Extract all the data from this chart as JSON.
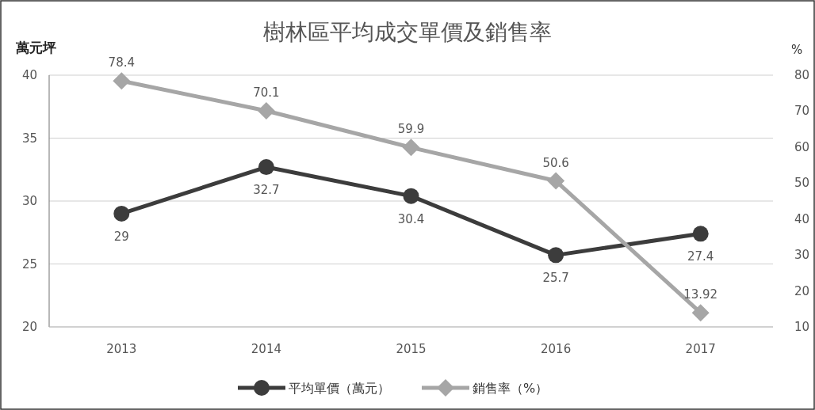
{
  "chart_data": {
    "type": "line",
    "title": "樹林區平均成交單價及銷售率",
    "ylabel": "萬元坪",
    "y2label": "%",
    "categories": [
      "2013",
      "2014",
      "2015",
      "2016",
      "2017"
    ],
    "series": [
      {
        "name": "平均單價（萬元）",
        "color": "#3c3c3c",
        "marker": "circle",
        "values": [
          29,
          32.7,
          30.4,
          25.7,
          27.4
        ]
      },
      {
        "name": "銷售率（%）",
        "color": "#a6a6a6",
        "marker": "diamond",
        "axis": "y2",
        "values": [
          78.4,
          70.1,
          59.9,
          50.6,
          13.92
        ]
      }
    ],
    "ylim": [
      20,
      40
    ],
    "yticks": [
      20,
      25,
      30,
      35,
      40
    ],
    "y2lim": [
      10,
      80
    ],
    "y2ticks": [
      10,
      20,
      30,
      40,
      50,
      60,
      70,
      80
    ],
    "grid": "y",
    "legend": "bottom",
    "data_labels": true
  }
}
